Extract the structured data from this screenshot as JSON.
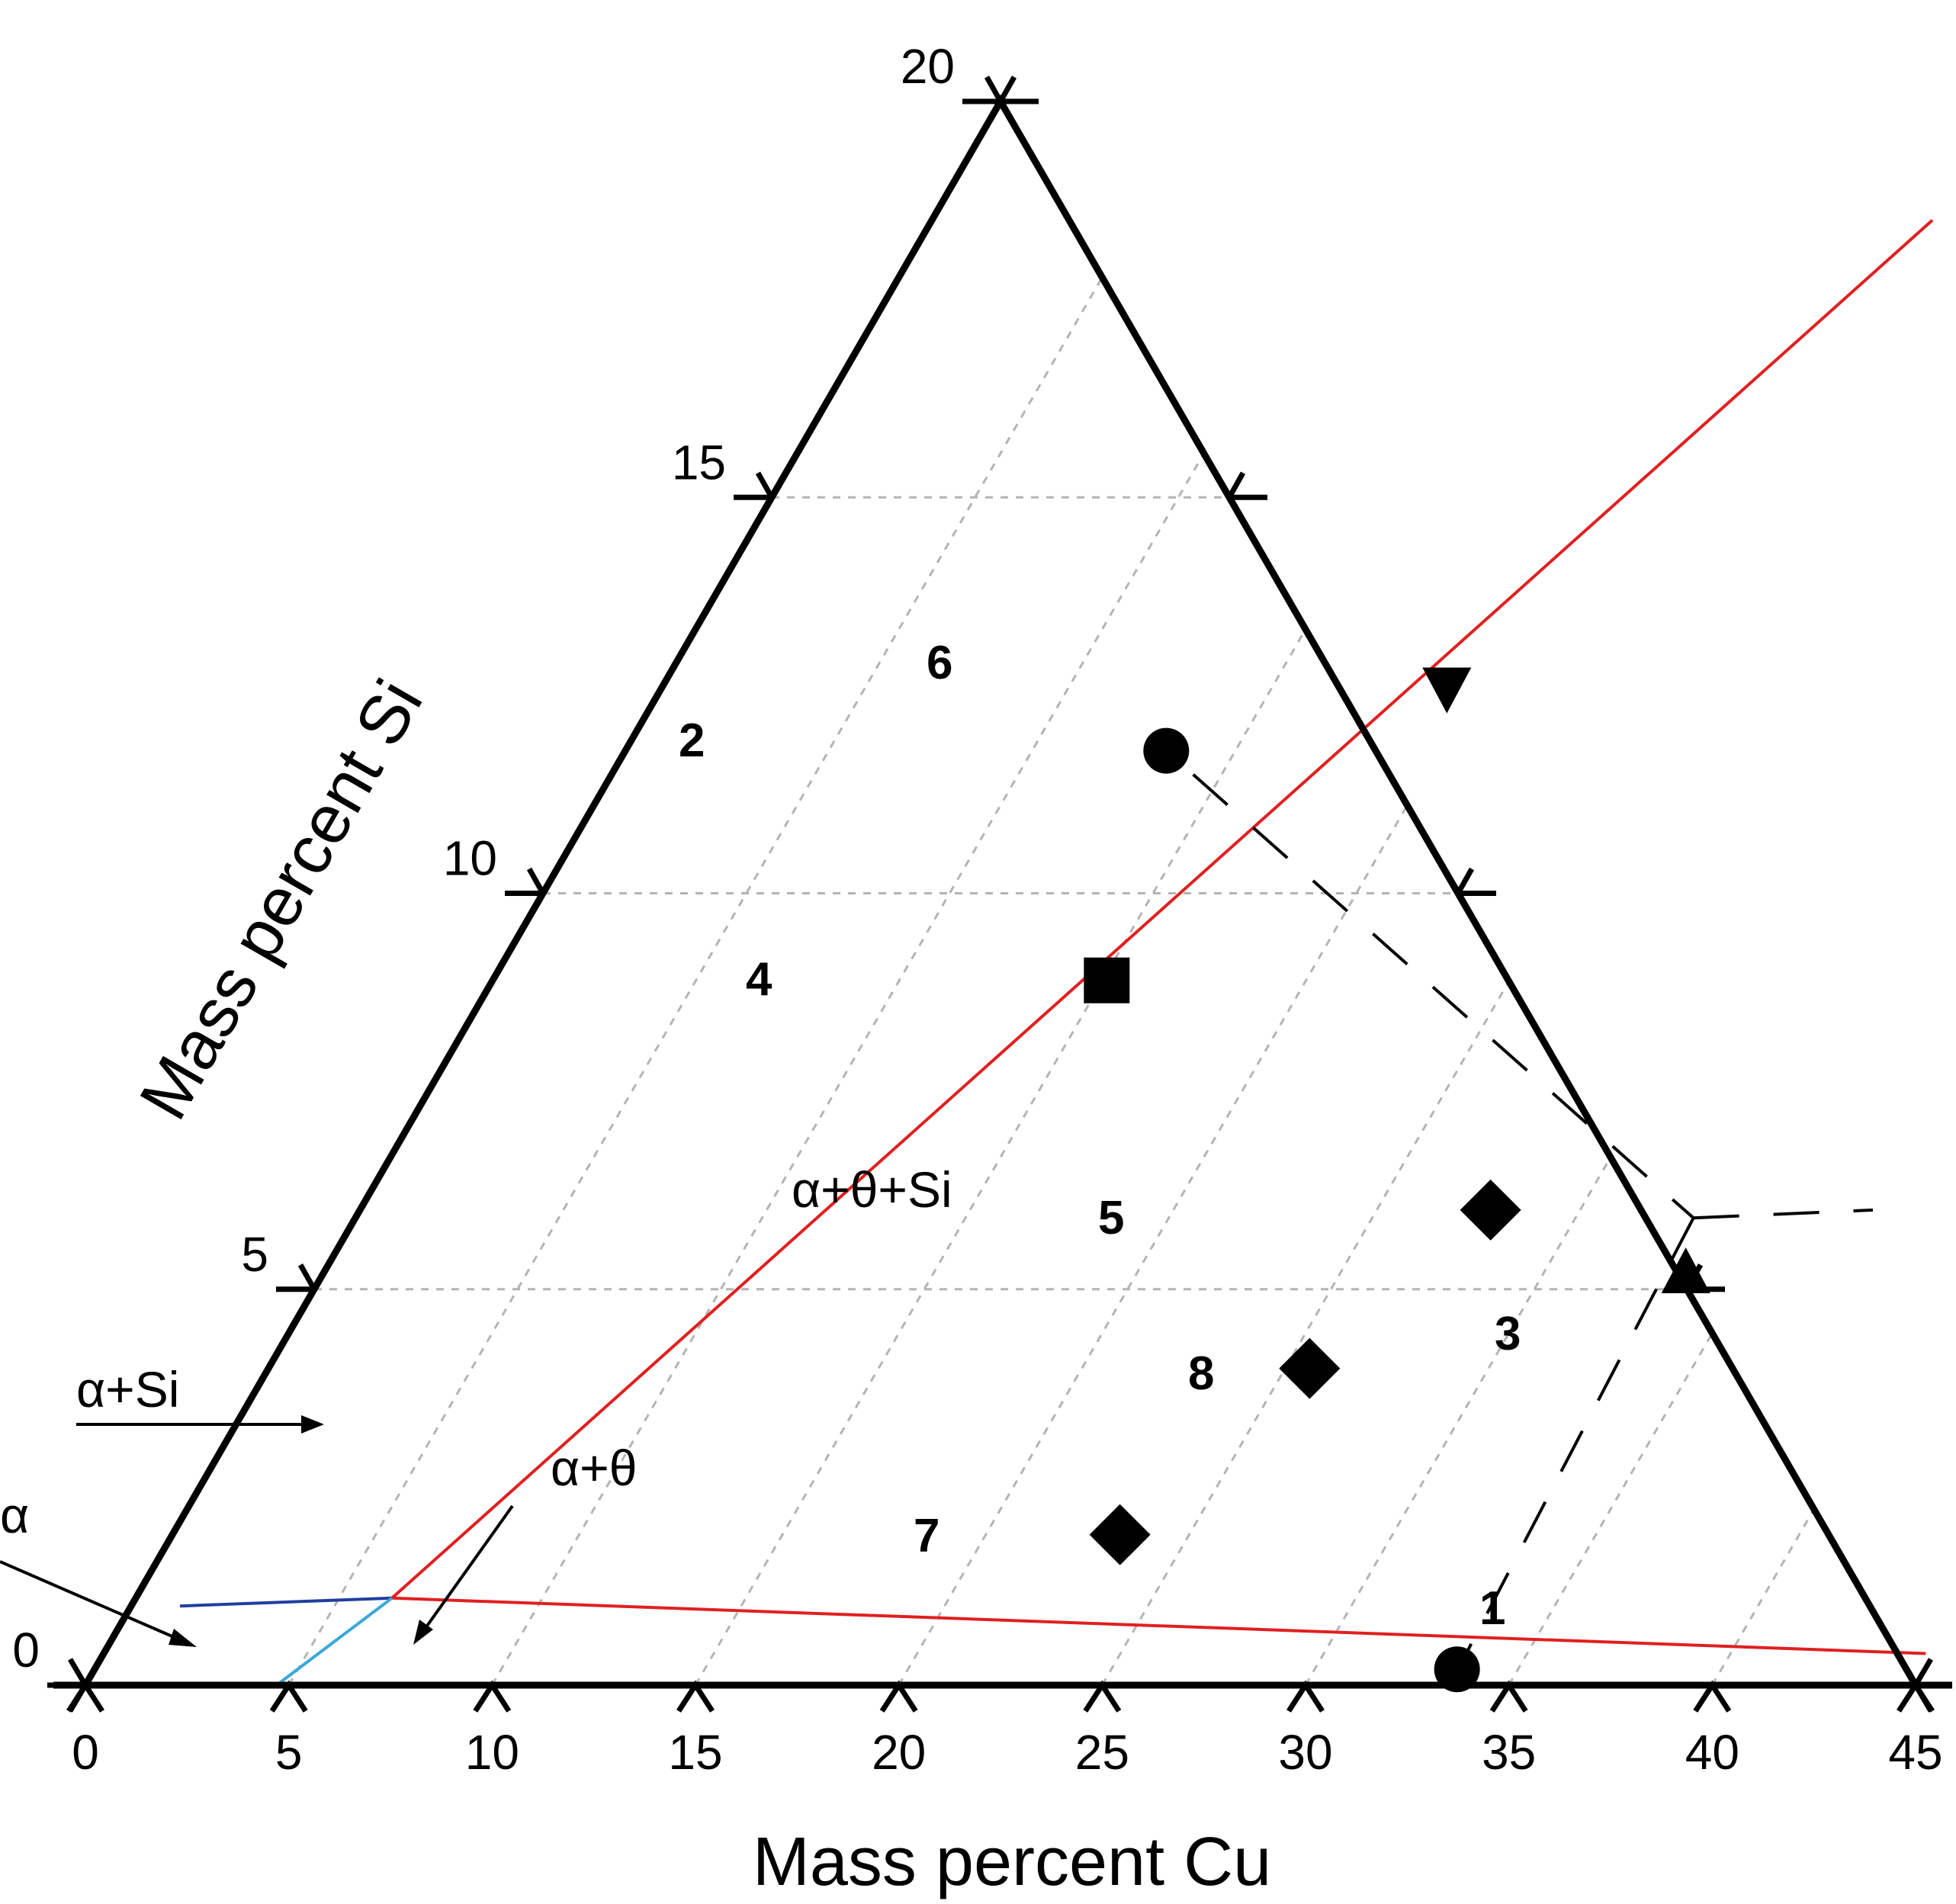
{
  "chart_data": {
    "type": "scatter",
    "xlabel": "Mass percent Cu",
    "ylabel": "Mass percent Si",
    "x_ticks": [
      "0",
      "5",
      "10",
      "15",
      "20",
      "25",
      "30",
      "35",
      "40",
      "45"
    ],
    "y_ticks": [
      "0",
      "5",
      "10",
      "15",
      "20"
    ],
    "xlim": [
      0,
      45
    ],
    "ylim": [
      0,
      20
    ],
    "grid": true,
    "regions": [
      {
        "label": "α+θ+Si"
      },
      {
        "label": "α+Si"
      },
      {
        "label": "α+θ"
      },
      {
        "label": "α"
      }
    ],
    "points": [
      {
        "label": "1",
        "marker": "circle",
        "cu": 33.5,
        "si": 0.2
      },
      {
        "label": "2",
        "marker": "circle",
        "cu": 13.3,
        "si": 11.8
      },
      {
        "label": "3",
        "marker": "triangle-up",
        "cu": 33.5,
        "si": 5.2
      },
      {
        "label": "4",
        "marker": "square",
        "cu": 15.1,
        "si": 8.9
      },
      {
        "label": "5",
        "marker": "diamond",
        "cu": 27.8,
        "si": 6.0
      },
      {
        "label": "6",
        "marker": "triangle-down",
        "cu": 19.3,
        "si": 12.6
      },
      {
        "label": "7",
        "marker": "diamond",
        "cu": 23.3,
        "si": 1.9
      },
      {
        "label": "8",
        "marker": "diamond",
        "cu": 25.6,
        "si": 4.0
      }
    ],
    "lines": [
      {
        "kind": "phase-boundary",
        "color": "#e02020",
        "points": [
          [
            6.3,
            1.1
          ],
          [
            24.6,
            18.5
          ]
        ]
      },
      {
        "kind": "phase-boundary",
        "color": "#e02020",
        "points": [
          [
            6.3,
            1.1
          ],
          [
            44.8,
            0.4
          ]
        ]
      },
      {
        "kind": "phase-boundary",
        "color": "#1f3fa0",
        "points": [
          [
            1.2,
            1.0
          ],
          [
            6.3,
            1.1
          ]
        ]
      },
      {
        "kind": "phase-boundary",
        "color": "#3aa8d8",
        "points": [
          [
            4.7,
            0.0
          ],
          [
            6.3,
            1.1
          ]
        ]
      },
      {
        "kind": "dashed",
        "color": "#000000",
        "points": [
          [
            14.3,
            11.5
          ],
          [
            32.9,
            5.9
          ]
        ]
      },
      {
        "kind": "dashed",
        "color": "#000000",
        "points": [
          [
            32.9,
            5.9
          ],
          [
            37.2,
            6.0
          ]
        ]
      },
      {
        "kind": "dashed",
        "color": "#000000",
        "points": [
          [
            32.9,
            5.9
          ],
          [
            33.5,
            0.4
          ]
        ]
      }
    ]
  }
}
